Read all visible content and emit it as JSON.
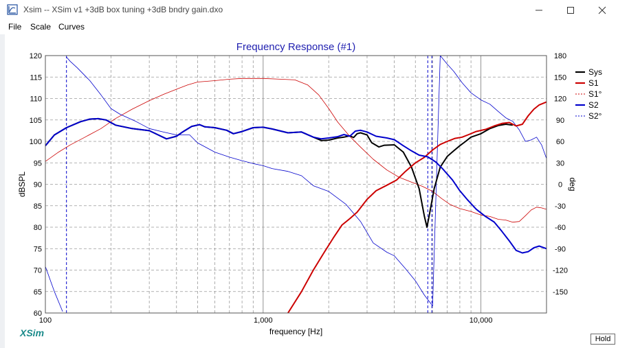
{
  "window": {
    "title": "Xsim -- XSim v1 +3dB box tuning +3dB bndry gain.dxo",
    "controls": {
      "minimize": "minimize",
      "maximize": "maximize",
      "close": "close"
    }
  },
  "menu": {
    "items": [
      "File",
      "Scale",
      "Curves"
    ]
  },
  "branding": {
    "logo_text": "XSim"
  },
  "hold_label": "Hold",
  "chart_data": {
    "type": "line",
    "title": "Frequency Response (#1)",
    "xlabel": "frequency [Hz]",
    "ylabel": "dBSPL",
    "y2label": "deg",
    "xscale": "log",
    "xlim": [
      100,
      20000
    ],
    "ylim": [
      60,
      120
    ],
    "y2lim": [
      -180,
      180
    ],
    "x_tick_labels": [
      "100",
      "1,000",
      "10,000"
    ],
    "y_ticks": [
      60,
      65,
      70,
      75,
      80,
      85,
      90,
      95,
      100,
      105,
      110,
      115,
      120
    ],
    "y2_ticks": [
      -150,
      -120,
      -90,
      -60,
      -30,
      0,
      30,
      60,
      90,
      120,
      150,
      180
    ],
    "grid": true,
    "legend_position": "right",
    "series": [
      {
        "name": "Sys",
        "axis": "left",
        "color": "#000000",
        "style": "solid",
        "width": 2,
        "points": [
          [
            100,
            99
          ],
          [
            110,
            101.5
          ],
          [
            125,
            103.2
          ],
          [
            145,
            104.6
          ],
          [
            160,
            105.2
          ],
          [
            175,
            105.3
          ],
          [
            190,
            105
          ],
          [
            210,
            103.8
          ],
          [
            250,
            103
          ],
          [
            300,
            102.5
          ],
          [
            330,
            101.5
          ],
          [
            360,
            100.6
          ],
          [
            400,
            101.2
          ],
          [
            430,
            102.3
          ],
          [
            470,
            103.5
          ],
          [
            510,
            103.9
          ],
          [
            540,
            103.4
          ],
          [
            600,
            103.2
          ],
          [
            680,
            102.6
          ],
          [
            730,
            101.8
          ],
          [
            800,
            102.3
          ],
          [
            900,
            103.2
          ],
          [
            1000,
            103.3
          ],
          [
            1100,
            102.9
          ],
          [
            1300,
            102
          ],
          [
            1500,
            102.2
          ],
          [
            1700,
            101
          ],
          [
            1850,
            100.2
          ],
          [
            2000,
            100.3
          ],
          [
            2200,
            100.8
          ],
          [
            2350,
            101
          ],
          [
            2500,
            101.3
          ],
          [
            2600,
            100.9
          ],
          [
            2700,
            101.8
          ],
          [
            2800,
            102
          ],
          [
            3000,
            101.5
          ],
          [
            3150,
            99.7
          ],
          [
            3400,
            98.7
          ],
          [
            3600,
            99.1
          ],
          [
            4000,
            99.2
          ],
          [
            4400,
            97.5
          ],
          [
            4800,
            94
          ],
          [
            5200,
            89
          ],
          [
            5500,
            82.5
          ],
          [
            5650,
            80
          ],
          [
            5800,
            83
          ],
          [
            6100,
            89
          ],
          [
            6500,
            94
          ],
          [
            7000,
            96.5
          ],
          [
            7500,
            97.8
          ],
          [
            8000,
            99
          ],
          [
            8500,
            100
          ],
          [
            9000,
            101
          ],
          [
            10000,
            101.8
          ],
          [
            11000,
            103
          ],
          [
            12000,
            103.7
          ],
          [
            13000,
            104
          ],
          [
            14000,
            103.8
          ]
        ]
      },
      {
        "name": "S1",
        "axis": "left",
        "color": "#cc0000",
        "style": "solid",
        "width": 2,
        "points": [
          [
            1300,
            60
          ],
          [
            1500,
            65
          ],
          [
            1700,
            70
          ],
          [
            1900,
            74
          ],
          [
            2100,
            77.5
          ],
          [
            2300,
            80.5
          ],
          [
            2500,
            82
          ],
          [
            2700,
            83.5
          ],
          [
            3000,
            86.5
          ],
          [
            3300,
            88.5
          ],
          [
            3700,
            89.8
          ],
          [
            4100,
            91
          ],
          [
            4500,
            93
          ],
          [
            5000,
            95
          ],
          [
            5500,
            96.3
          ],
          [
            6000,
            98
          ],
          [
            6500,
            99.3
          ],
          [
            7000,
            100
          ],
          [
            7600,
            100.7
          ],
          [
            8200,
            101
          ],
          [
            8800,
            101.6
          ],
          [
            9500,
            102.3
          ],
          [
            10500,
            102.8
          ],
          [
            11500,
            103.6
          ],
          [
            12500,
            104.2
          ],
          [
            13500,
            104.4
          ],
          [
            14500,
            103.6
          ],
          [
            15500,
            104
          ],
          [
            16500,
            106
          ],
          [
            17500,
            107.5
          ],
          [
            18500,
            108.5
          ],
          [
            20000,
            109.2
          ]
        ]
      },
      {
        "name": "S1°",
        "axis": "right",
        "color": "#cc0000",
        "style": "solid",
        "width": 0.8,
        "points": [
          [
            100,
            32
          ],
          [
            115,
            45
          ],
          [
            130,
            55
          ],
          [
            150,
            65
          ],
          [
            180,
            78
          ],
          [
            210,
            92
          ],
          [
            250,
            105
          ],
          [
            300,
            117
          ],
          [
            350,
            126
          ],
          [
            400,
            133
          ],
          [
            450,
            139
          ],
          [
            500,
            143
          ],
          [
            600,
            145
          ],
          [
            700,
            147
          ],
          [
            800,
            148
          ],
          [
            1000,
            148
          ],
          [
            1200,
            147
          ],
          [
            1400,
            146
          ],
          [
            1600,
            139
          ],
          [
            1800,
            125
          ],
          [
            2000,
            106
          ],
          [
            2200,
            87
          ],
          [
            2500,
            67
          ],
          [
            2800,
            52
          ],
          [
            3200,
            35
          ],
          [
            3700,
            20
          ],
          [
            4200,
            10
          ],
          [
            4800,
            3
          ],
          [
            5400,
            -3
          ],
          [
            6000,
            -10
          ],
          [
            6600,
            -20
          ],
          [
            7200,
            -28
          ],
          [
            8000,
            -34
          ],
          [
            9000,
            -38
          ],
          [
            10000,
            -43
          ],
          [
            11000,
            -45
          ],
          [
            12000,
            -49
          ],
          [
            13000,
            -50
          ],
          [
            14000,
            -53
          ],
          [
            15000,
            -52
          ],
          [
            16000,
            -44
          ],
          [
            17000,
            -36
          ],
          [
            18000,
            -32
          ],
          [
            19000,
            -33
          ],
          [
            20000,
            -35
          ]
        ]
      },
      {
        "name": "S2",
        "axis": "left",
        "color": "#0000cc",
        "style": "solid",
        "width": 2,
        "points": [
          [
            100,
            99
          ],
          [
            110,
            101.5
          ],
          [
            125,
            103.2
          ],
          [
            145,
            104.6
          ],
          [
            160,
            105.2
          ],
          [
            175,
            105.3
          ],
          [
            190,
            105
          ],
          [
            210,
            103.8
          ],
          [
            250,
            103
          ],
          [
            300,
            102.5
          ],
          [
            330,
            101.5
          ],
          [
            360,
            100.6
          ],
          [
            400,
            101.2
          ],
          [
            430,
            102.3
          ],
          [
            470,
            103.5
          ],
          [
            510,
            103.9
          ],
          [
            540,
            103.4
          ],
          [
            600,
            103.2
          ],
          [
            680,
            102.6
          ],
          [
            730,
            101.8
          ],
          [
            800,
            102.3
          ],
          [
            900,
            103.2
          ],
          [
            1000,
            103.3
          ],
          [
            1100,
            102.9
          ],
          [
            1300,
            102
          ],
          [
            1500,
            102.2
          ],
          [
            1700,
            101
          ],
          [
            1850,
            100.6
          ],
          [
            2000,
            100.8
          ],
          [
            2200,
            101.1
          ],
          [
            2350,
            101.6
          ],
          [
            2500,
            101.2
          ],
          [
            2650,
            102.4
          ],
          [
            2800,
            102.6
          ],
          [
            3000,
            102.2
          ],
          [
            3300,
            101.2
          ],
          [
            3700,
            100.8
          ],
          [
            4000,
            100.4
          ],
          [
            4400,
            99
          ],
          [
            4800,
            97.8
          ],
          [
            5200,
            96.8
          ],
          [
            5700,
            96.4
          ],
          [
            6200,
            95.2
          ],
          [
            6700,
            93.5
          ],
          [
            7400,
            91
          ],
          [
            8000,
            88.5
          ],
          [
            8700,
            86.3
          ],
          [
            9500,
            84.2
          ],
          [
            10500,
            82.5
          ],
          [
            11500,
            81.2
          ],
          [
            12500,
            79
          ],
          [
            13500,
            76.8
          ],
          [
            14500,
            74.6
          ],
          [
            15500,
            74
          ],
          [
            16500,
            74.3
          ],
          [
            17500,
            75.2
          ],
          [
            18500,
            75.6
          ],
          [
            20000,
            75
          ]
        ]
      },
      {
        "name": "S2°",
        "axis": "right",
        "color": "#0000cc",
        "style": "solid",
        "width": 0.8,
        "points": [
          [
            125,
            178
          ],
          [
            130,
            172
          ],
          [
            140,
            163
          ],
          [
            160,
            145
          ],
          [
            180,
            125
          ],
          [
            200,
            106
          ],
          [
            220,
            98
          ],
          [
            260,
            88
          ],
          [
            300,
            78
          ],
          [
            350,
            73
          ],
          [
            400,
            69
          ],
          [
            460,
            69
          ],
          [
            500,
            58
          ],
          [
            600,
            45
          ],
          [
            700,
            38
          ],
          [
            800,
            33
          ],
          [
            900,
            29
          ],
          [
            1000,
            26
          ],
          [
            1100,
            22
          ],
          [
            1300,
            18
          ],
          [
            1500,
            12
          ],
          [
            1700,
            -2
          ],
          [
            2000,
            -10
          ],
          [
            2400,
            -28
          ],
          [
            2800,
            -52
          ],
          [
            3200,
            -82
          ],
          [
            3700,
            -95
          ],
          [
            4000,
            -100
          ],
          [
            4500,
            -118
          ],
          [
            5000,
            -135
          ],
          [
            5500,
            -155
          ],
          [
            6000,
            -170
          ],
          [
            6500,
            180
          ],
          [
            7000,
            168
          ],
          [
            7500,
            158
          ],
          [
            8200,
            142
          ],
          [
            9000,
            128
          ],
          [
            10000,
            118
          ],
          [
            11000,
            112
          ],
          [
            12000,
            102
          ],
          [
            13000,
            93
          ],
          [
            14000,
            88
          ],
          [
            15000,
            76
          ],
          [
            16000,
            60
          ],
          [
            17000,
            62
          ],
          [
            18000,
            66
          ],
          [
            19000,
            55
          ],
          [
            20000,
            36
          ]
        ]
      },
      {
        "name": "",
        "axis": "right",
        "color": "#0000cc",
        "style": "solid",
        "width": 0.8,
        "points": [
          [
            100,
            -115
          ],
          [
            110,
            -150
          ],
          [
            120,
            -178
          ]
        ]
      }
    ],
    "vertical_markers": [
      {
        "x": 125,
        "color": "#0000cc",
        "style": "dashed"
      },
      {
        "x": 5700,
        "color": "#0000cc",
        "style": "dashed"
      },
      {
        "x": 5950,
        "color": "#0000cc",
        "style": "dashed"
      }
    ]
  }
}
